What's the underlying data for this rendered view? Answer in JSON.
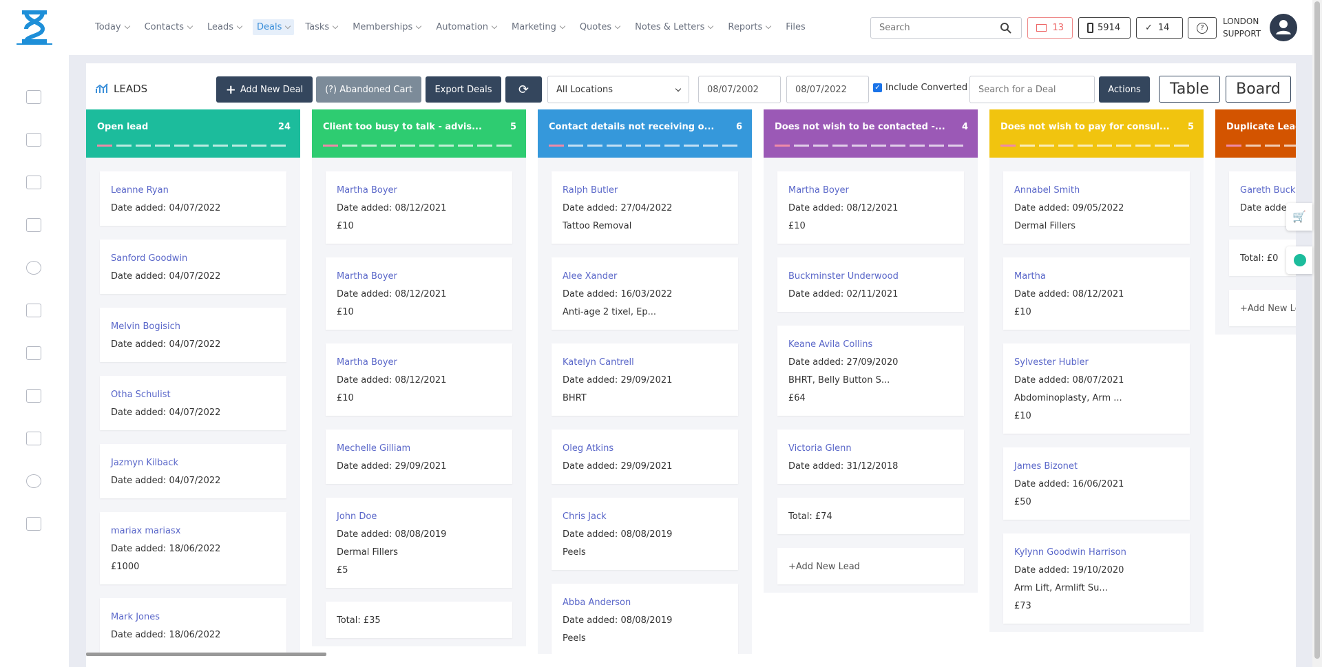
{
  "nav": {
    "items": [
      "Today",
      "Contacts",
      "Leads",
      "Deals",
      "Tasks",
      "Memberships",
      "Automation",
      "Marketing",
      "Quotes",
      "Notes & Letters",
      "Reports",
      "Files"
    ],
    "active": 3,
    "search": "Search",
    "mail": "13",
    "phone": "5914",
    "tasks": "14",
    "user": [
      "LONDON",
      "SUPPORT"
    ]
  },
  "toolbar": {
    "title": "LEADS",
    "add": "Add New Deal",
    "abandoned": "(?) Abandoned Cart",
    "export": "Export Deals",
    "location": "All Locations",
    "date_from": "08/07/2002",
    "date_to": "08/07/2022",
    "include": "Include Converted",
    "search": "Search for a Deal",
    "actions": "Actions",
    "table": "Table",
    "board": "Board"
  },
  "board": {
    "date_label": "Date added:",
    "total_label": "Total:",
    "add_label": "+Add New Lead",
    "columns": [
      {
        "title": "Open lead",
        "count": "24",
        "color": "#1cbc9c",
        "cards": [
          {
            "name": "Leanne Ryan",
            "date": "04/07/2022",
            "lines": []
          },
          {
            "name": "Sanford Goodwin",
            "date": "04/07/2022",
            "lines": []
          },
          {
            "name": "Melvin Bogisich",
            "date": "04/07/2022",
            "lines": []
          },
          {
            "name": "Otha Schulist",
            "date": "04/07/2022",
            "lines": []
          },
          {
            "name": "Jazmyn Kilback",
            "date": "04/07/2022",
            "lines": []
          },
          {
            "name": "mariax mariasx",
            "date": "18/06/2022",
            "lines": [
              "£1000"
            ]
          },
          {
            "name": "Mark Jones",
            "date": "18/06/2022",
            "lines": []
          }
        ]
      },
      {
        "title": "Client too busy to talk - advis...",
        "count": "5",
        "color": "#2ecc71",
        "cards": [
          {
            "name": "Martha Boyer",
            "date": "08/12/2021",
            "lines": [
              "£10"
            ]
          },
          {
            "name": "Martha Boyer",
            "date": "08/12/2021",
            "lines": [
              "£10"
            ]
          },
          {
            "name": "Martha Boyer",
            "date": "08/12/2021",
            "lines": [
              "£10"
            ]
          },
          {
            "name": "Mechelle Gilliam",
            "date": "29/09/2021",
            "lines": []
          },
          {
            "name": "John Doe",
            "date": "08/08/2019",
            "lines": [
              "Dermal Fillers",
              "£5"
            ]
          }
        ],
        "total": "£35"
      },
      {
        "title": "Contact details not receiving o...",
        "count": "6",
        "color": "#3598db",
        "cards": [
          {
            "name": "Ralph Butler",
            "date": "27/04/2022",
            "lines": [
              "Tattoo Removal"
            ]
          },
          {
            "name": "Alee Xander",
            "date": "16/03/2022",
            "lines": [
              "Anti-age 2 tixel, Ep..."
            ]
          },
          {
            "name": "Katelyn Cantrell",
            "date": "29/09/2021",
            "lines": [
              "BHRT"
            ]
          },
          {
            "name": "Oleg Atkins",
            "date": "29/09/2021",
            "lines": []
          },
          {
            "name": "Chris Jack",
            "date": "08/08/2019",
            "lines": [
              "Peels"
            ]
          },
          {
            "name": "Abba Anderson",
            "date": "08/08/2019",
            "lines": [
              "Peels"
            ]
          }
        ]
      },
      {
        "title": "Does not wish to be contacted -...",
        "count": "4",
        "color": "#9b59b6",
        "cards": [
          {
            "name": "Martha Boyer",
            "date": "08/12/2021",
            "lines": [
              "£10"
            ]
          },
          {
            "name": "Buckminster Underwood",
            "date": "02/11/2021",
            "lines": []
          },
          {
            "name": "Keane Avila Collins",
            "date": "27/09/2020",
            "lines": [
              "BHRT, Belly Button S...",
              "£64"
            ]
          },
          {
            "name": "Victoria Glenn",
            "date": "31/12/2018",
            "lines": []
          }
        ],
        "total": "£74",
        "add": true
      },
      {
        "title": "Does not wish to pay for consul...",
        "count": "5",
        "color": "#f1c40f",
        "cards": [
          {
            "name": "Annabel Smith",
            "date": "09/05/2022",
            "lines": [
              "Dermal Fillers"
            ]
          },
          {
            "name": "Martha",
            "date": "08/12/2021",
            "lines": [
              "£10"
            ]
          },
          {
            "name": "Sylvester Hubler",
            "date": "08/07/2021",
            "lines": [
              "Abdominoplasty, Arm ...",
              "£10"
            ]
          },
          {
            "name": "James Bizonet",
            "date": "16/06/2021",
            "lines": [
              "£50"
            ]
          },
          {
            "name": "Kylynn Goodwin Harrison",
            "date": "19/10/2020",
            "lines": [
              "Arm Lift, Armlift Su...",
              "£73"
            ]
          }
        ]
      },
      {
        "title": "Duplicate Lead",
        "count": "",
        "color": "#d35400",
        "cards": [
          {
            "name": "Gareth Buck",
            "date": "",
            "lines": []
          }
        ],
        "total": "£0",
        "add": true
      }
    ]
  }
}
